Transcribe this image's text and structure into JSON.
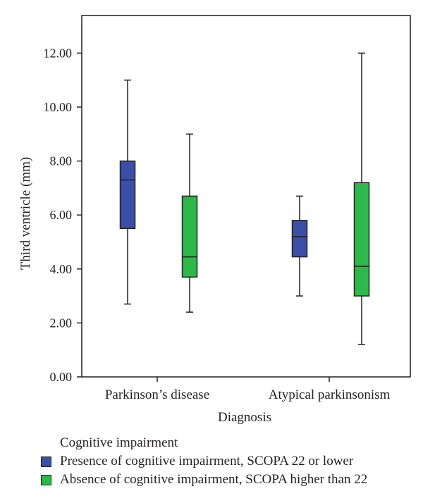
{
  "chart_data": {
    "type": "box",
    "xlabel": "Diagnosis",
    "ylabel": "Third ventricle (mm)",
    "ylim": [
      0,
      13.2
    ],
    "yticks": [
      "0.00",
      "2.00",
      "4.00",
      "6.00",
      "8.00",
      "10.00",
      "12.00"
    ],
    "categories": [
      "Parkinson’s disease",
      "Atypical parkinsonism"
    ],
    "legend_title": "Cognitive impairment",
    "series": [
      {
        "name": "Presence of cognitive impairment, SCOPA 22 or lower",
        "color": "#3b4ea8",
        "boxes": [
          {
            "min": 2.7,
            "q1": 5.5,
            "median": 7.3,
            "q3": 8.0,
            "max": 11.0
          },
          {
            "min": 3.0,
            "q1": 4.45,
            "median": 5.2,
            "q3": 5.8,
            "max": 6.7
          }
        ]
      },
      {
        "name": "Absence of cognitive impairment, SCOPA higher than 22",
        "color": "#2db84a",
        "boxes": [
          {
            "min": 2.4,
            "q1": 3.7,
            "median": 4.45,
            "q3": 6.7,
            "max": 9.0
          },
          {
            "min": 1.2,
            "q1": 3.0,
            "median": 4.1,
            "q3": 7.2,
            "max": 12.0
          }
        ]
      }
    ],
    "grid": false,
    "legend_position": "bottom"
  }
}
